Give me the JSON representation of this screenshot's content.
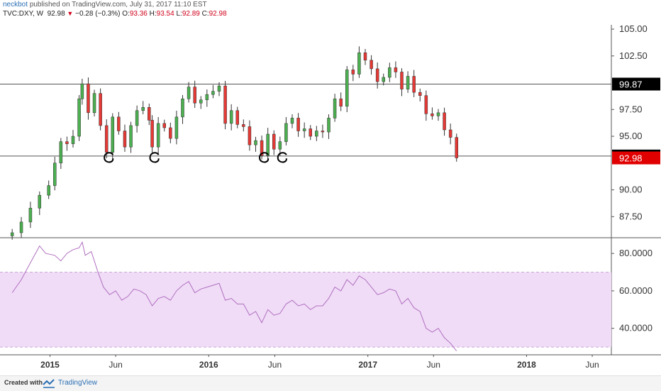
{
  "header": {
    "user": "neckbot",
    "published_text": "published on TradingView.com, July 31, 2017 11:10 EST",
    "symbol": "TVC:DXY, W",
    "last": "92.98",
    "change": "−0.28 (−0.3%)",
    "o_label": "O:",
    "o_value": "93.36",
    "h_label": "H:",
    "h_value": "93.54",
    "l_label": "L:",
    "l_value": "92.89",
    "c_label": "C:",
    "c_value": "92.98"
  },
  "footer": {
    "created": "Created with",
    "brand": "TradingView"
  },
  "colors": {
    "up": "#26a69a",
    "upBody": "#4caf50",
    "down": "#e53935",
    "rsi": "#b06fbf",
    "rsiBand": "#f0dcf7",
    "lastPrice": "#e00000",
    "label": "#000000"
  },
  "chart_data": [
    {
      "type": "candlestick",
      "title": "TVC:DXY, W",
      "x_tick_labels": [
        "2015",
        "Jun",
        "2016",
        "Jun",
        "2017",
        "Jun",
        "2018",
        "Jun"
      ],
      "y_tick_labels": [
        "105.00",
        "102.50",
        "97.50",
        "95.00",
        "90.00",
        "87.50"
      ],
      "ylim": [
        85.6,
        105.4
      ],
      "horizontal_lines": [
        {
          "value": 99.87,
          "label": "99.87"
        },
        {
          "value": 93.16,
          "label": "93.16"
        }
      ],
      "last_price": {
        "value": 92.98,
        "label": "92.98"
      },
      "series_close": [
        {
          "t": "2014-10-06",
          "c": 86.0
        },
        {
          "t": "2014-10-27",
          "c": 87.0
        },
        {
          "t": "2014-11-17",
          "c": 88.3
        },
        {
          "t": "2014-12-08",
          "c": 89.5
        },
        {
          "t": "2014-12-29",
          "c": 90.4
        },
        {
          "t": "2015-01-12",
          "c": 92.5
        },
        {
          "t": "2015-01-26",
          "c": 94.5
        },
        {
          "t": "2015-02-09",
          "c": 94.3
        },
        {
          "t": "2015-02-23",
          "c": 95.0
        },
        {
          "t": "2015-03-09",
          "c": 98.5
        },
        {
          "t": "2015-03-16",
          "c": 99.9
        },
        {
          "t": "2015-03-30",
          "c": 97.2
        },
        {
          "t": "2015-04-13",
          "c": 99.0
        },
        {
          "t": "2015-04-27",
          "c": 96.0
        },
        {
          "t": "2015-05-11",
          "c": 93.5
        },
        {
          "t": "2015-05-25",
          "c": 96.8
        },
        {
          "t": "2015-06-08",
          "c": 95.5
        },
        {
          "t": "2015-06-22",
          "c": 94.0
        },
        {
          "t": "2015-07-06",
          "c": 96.0
        },
        {
          "t": "2015-07-20",
          "c": 97.4
        },
        {
          "t": "2015-08-03",
          "c": 97.7
        },
        {
          "t": "2015-08-17",
          "c": 96.5
        },
        {
          "t": "2015-08-24",
          "c": 94.0
        },
        {
          "t": "2015-09-07",
          "c": 96.2
        },
        {
          "t": "2015-09-21",
          "c": 95.8
        },
        {
          "t": "2015-10-05",
          "c": 94.8
        },
        {
          "t": "2015-10-19",
          "c": 96.8
        },
        {
          "t": "2015-11-02",
          "c": 98.5
        },
        {
          "t": "2015-11-16",
          "c": 99.6
        },
        {
          "t": "2015-11-30",
          "c": 98.1
        },
        {
          "t": "2015-12-14",
          "c": 98.4
        },
        {
          "t": "2015-12-28",
          "c": 98.9
        },
        {
          "t": "2016-01-11",
          "c": 99.2
        },
        {
          "t": "2016-01-25",
          "c": 99.7
        },
        {
          "t": "2016-02-08",
          "c": 96.2
        },
        {
          "t": "2016-02-22",
          "c": 97.4
        },
        {
          "t": "2016-03-07",
          "c": 96.1
        },
        {
          "t": "2016-03-21",
          "c": 95.9
        },
        {
          "t": "2016-04-04",
          "c": 94.2
        },
        {
          "t": "2016-04-18",
          "c": 94.6
        },
        {
          "t": "2016-05-02",
          "c": 93.2
        },
        {
          "t": "2016-05-16",
          "c": 95.2
        },
        {
          "t": "2016-05-30",
          "c": 93.8
        },
        {
          "t": "2016-06-13",
          "c": 94.5
        },
        {
          "t": "2016-06-27",
          "c": 96.2
        },
        {
          "t": "2016-07-11",
          "c": 96.7
        },
        {
          "t": "2016-07-25",
          "c": 95.5
        },
        {
          "t": "2016-08-08",
          "c": 95.7
        },
        {
          "t": "2016-08-22",
          "c": 95.0
        },
        {
          "t": "2016-09-05",
          "c": 95.5
        },
        {
          "t": "2016-09-19",
          "c": 95.4
        },
        {
          "t": "2016-10-03",
          "c": 96.7
        },
        {
          "t": "2016-10-17",
          "c": 98.5
        },
        {
          "t": "2016-10-31",
          "c": 97.8
        },
        {
          "t": "2016-11-14",
          "c": 101.2
        },
        {
          "t": "2016-11-28",
          "c": 100.8
        },
        {
          "t": "2016-12-12",
          "c": 102.8
        },
        {
          "t": "2016-12-26",
          "c": 102.1
        },
        {
          "t": "2017-01-09",
          "c": 101.3
        },
        {
          "t": "2017-01-23",
          "c": 100.1
        },
        {
          "t": "2017-02-06",
          "c": 100.5
        },
        {
          "t": "2017-02-20",
          "c": 101.4
        },
        {
          "t": "2017-03-06",
          "c": 101.0
        },
        {
          "t": "2017-03-20",
          "c": 99.4
        },
        {
          "t": "2017-04-03",
          "c": 100.6
        },
        {
          "t": "2017-04-17",
          "c": 99.1
        },
        {
          "t": "2017-05-01",
          "c": 98.8
        },
        {
          "t": "2017-05-15",
          "c": 97.1
        },
        {
          "t": "2017-05-29",
          "c": 96.9
        },
        {
          "t": "2017-06-12",
          "c": 97.2
        },
        {
          "t": "2017-06-26",
          "c": 95.6
        },
        {
          "t": "2017-07-10",
          "c": 94.9
        },
        {
          "t": "2017-07-24",
          "c": 92.98
        }
      ]
    },
    {
      "type": "line",
      "title": "RSI",
      "y_tick_labels": [
        "80.0000",
        "60.0000",
        "40.0000"
      ],
      "ylim": [
        27,
        88
      ],
      "band": [
        30,
        70
      ],
      "series": [
        {
          "values": [
            {
              "t": "2014-10-06",
              "v": 59
            },
            {
              "t": "2014-10-27",
              "v": 66
            },
            {
              "t": "2014-11-17",
              "v": 75
            },
            {
              "t": "2014-12-08",
              "v": 84
            },
            {
              "t": "2014-12-22",
              "v": 80
            },
            {
              "t": "2015-01-12",
              "v": 79
            },
            {
              "t": "2015-01-26",
              "v": 76
            },
            {
              "t": "2015-02-09",
              "v": 80
            },
            {
              "t": "2015-02-23",
              "v": 82
            },
            {
              "t": "2015-03-09",
              "v": 83
            },
            {
              "t": "2015-03-16",
              "v": 86
            },
            {
              "t": "2015-03-23",
              "v": 79
            },
            {
              "t": "2015-04-06",
              "v": 81
            },
            {
              "t": "2015-04-20",
              "v": 71
            },
            {
              "t": "2015-05-04",
              "v": 62
            },
            {
              "t": "2015-05-18",
              "v": 58
            },
            {
              "t": "2015-06-01",
              "v": 60
            },
            {
              "t": "2015-06-15",
              "v": 55
            },
            {
              "t": "2015-06-29",
              "v": 57
            },
            {
              "t": "2015-07-13",
              "v": 61
            },
            {
              "t": "2015-07-27",
              "v": 60
            },
            {
              "t": "2015-08-10",
              "v": 58
            },
            {
              "t": "2015-08-24",
              "v": 52
            },
            {
              "t": "2015-09-07",
              "v": 56
            },
            {
              "t": "2015-09-21",
              "v": 57
            },
            {
              "t": "2015-10-05",
              "v": 55
            },
            {
              "t": "2015-10-19",
              "v": 60
            },
            {
              "t": "2015-11-02",
              "v": 63
            },
            {
              "t": "2015-11-16",
              "v": 65
            },
            {
              "t": "2015-11-30",
              "v": 59
            },
            {
              "t": "2015-12-14",
              "v": 61
            },
            {
              "t": "2015-12-28",
              "v": 62
            },
            {
              "t": "2016-01-11",
              "v": 63
            },
            {
              "t": "2016-01-25",
              "v": 64
            },
            {
              "t": "2016-02-08",
              "v": 55
            },
            {
              "t": "2016-02-22",
              "v": 56
            },
            {
              "t": "2016-03-07",
              "v": 53
            },
            {
              "t": "2016-03-21",
              "v": 53
            },
            {
              "t": "2016-04-04",
              "v": 47
            },
            {
              "t": "2016-04-18",
              "v": 49
            },
            {
              "t": "2016-05-02",
              "v": 43
            },
            {
              "t": "2016-05-16",
              "v": 50
            },
            {
              "t": "2016-05-30",
              "v": 47
            },
            {
              "t": "2016-06-13",
              "v": 48
            },
            {
              "t": "2016-06-27",
              "v": 53
            },
            {
              "t": "2016-07-11",
              "v": 55
            },
            {
              "t": "2016-07-25",
              "v": 52
            },
            {
              "t": "2016-08-08",
              "v": 53
            },
            {
              "t": "2016-08-22",
              "v": 50
            },
            {
              "t": "2016-09-05",
              "v": 52
            },
            {
              "t": "2016-09-19",
              "v": 52
            },
            {
              "t": "2016-10-03",
              "v": 56
            },
            {
              "t": "2016-10-17",
              "v": 62
            },
            {
              "t": "2016-10-31",
              "v": 60
            },
            {
              "t": "2016-11-14",
              "v": 66
            },
            {
              "t": "2016-11-28",
              "v": 63
            },
            {
              "t": "2016-12-12",
              "v": 68
            },
            {
              "t": "2016-12-26",
              "v": 66
            },
            {
              "t": "2017-01-09",
              "v": 62
            },
            {
              "t": "2017-01-23",
              "v": 58
            },
            {
              "t": "2017-02-06",
              "v": 59
            },
            {
              "t": "2017-02-20",
              "v": 61
            },
            {
              "t": "2017-03-06",
              "v": 60
            },
            {
              "t": "2017-03-20",
              "v": 53
            },
            {
              "t": "2017-04-03",
              "v": 56
            },
            {
              "t": "2017-04-17",
              "v": 51
            },
            {
              "t": "2017-05-01",
              "v": 49
            },
            {
              "t": "2017-05-15",
              "v": 40
            },
            {
              "t": "2017-05-29",
              "v": 38
            },
            {
              "t": "2017-06-12",
              "v": 40
            },
            {
              "t": "2017-06-26",
              "v": 35
            },
            {
              "t": "2017-07-10",
              "v": 32
            },
            {
              "t": "2017-07-24",
              "v": 28
            }
          ]
        }
      ]
    }
  ]
}
